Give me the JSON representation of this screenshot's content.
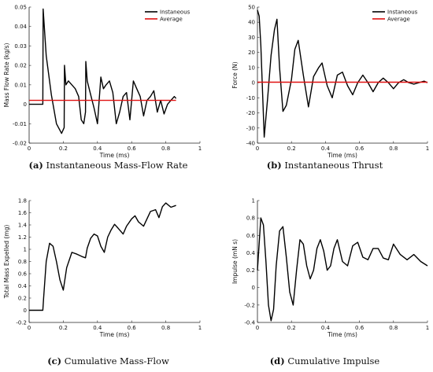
{
  "chart_data": [
    {
      "id": "a",
      "type": "line",
      "caption_letter": "(a)",
      "caption_text": "Instantaneous Mass-Flow Rate",
      "xlabel": "Time (ms)",
      "ylabel": "Mass Flow Rate (kg/s)",
      "xlim": [
        0,
        1
      ],
      "ylim": [
        -0.02,
        0.05
      ],
      "xticks": [
        "0",
        "0.2",
        "0.4",
        "0.6",
        "0.8",
        "1"
      ],
      "xtick_values": [
        0,
        0.2,
        0.4,
        0.6,
        0.8,
        1
      ],
      "yticks": [
        "-0.02",
        "-0.01",
        "0",
        "0.01",
        "0.02",
        "0.03",
        "0.04",
        "0.05"
      ],
      "ytick_values": [
        -0.02,
        -0.01,
        0,
        0.01,
        0.02,
        0.03,
        0.04,
        0.05
      ],
      "legend_position": "top-right",
      "series": [
        {
          "name": "Instaneous",
          "color": "#000000",
          "x": [
            0,
            0.08,
            0.082,
            0.1,
            0.13,
            0.16,
            0.19,
            0.205,
            0.207,
            0.215,
            0.23,
            0.25,
            0.27,
            0.29,
            0.305,
            0.32,
            0.33,
            0.332,
            0.34,
            0.36,
            0.38,
            0.4,
            0.42,
            0.435,
            0.45,
            0.47,
            0.49,
            0.51,
            0.53,
            0.55,
            0.57,
            0.59,
            0.61,
            0.63,
            0.65,
            0.67,
            0.69,
            0.71,
            0.73,
            0.75,
            0.77,
            0.79,
            0.81,
            0.83,
            0.85,
            0.86
          ],
          "y": [
            0,
            0,
            0.049,
            0.025,
            0.005,
            -0.01,
            -0.015,
            -0.012,
            0.02,
            0.01,
            0.012,
            0.01,
            0.008,
            0.004,
            -0.008,
            -0.01,
            -0.004,
            0.022,
            0.012,
            0.005,
            -0.002,
            -0.01,
            0.014,
            0.008,
            0.01,
            0.012,
            0.006,
            -0.01,
            -0.004,
            0.004,
            0.006,
            -0.008,
            0.012,
            0.008,
            0.004,
            -0.006,
            0.002,
            0.004,
            0.007,
            -0.004,
            0.002,
            -0.005,
            0.0,
            0.002,
            0.004,
            0.003
          ]
        },
        {
          "name": "Average",
          "color": "#e01010",
          "x": [
            0,
            0.86
          ],
          "y": [
            0.002,
            0.002
          ]
        }
      ]
    },
    {
      "id": "b",
      "type": "line",
      "caption_letter": "(b)",
      "caption_text": "Instantaneous Thrust",
      "xlabel": "Time (ms)",
      "ylabel": "Force (N)",
      "xlim": [
        0,
        1
      ],
      "ylim": [
        -40,
        50
      ],
      "xticks": [
        "0",
        "0.2",
        "0.4",
        "0.6",
        "0.8",
        "1"
      ],
      "xtick_values": [
        0,
        0.2,
        0.4,
        0.6,
        0.8,
        1
      ],
      "yticks": [
        "-40",
        "-30",
        "-20",
        "-10",
        "0",
        "10",
        "20",
        "30",
        "40",
        "50"
      ],
      "ytick_values": [
        -40,
        -30,
        -20,
        -10,
        0,
        10,
        20,
        30,
        40,
        50
      ],
      "legend_position": "top-right",
      "series": [
        {
          "name": "Instaneous",
          "color": "#000000",
          "x": [
            0,
            0.01,
            0.02,
            0.04,
            0.06,
            0.08,
            0.1,
            0.115,
            0.13,
            0.15,
            0.17,
            0.2,
            0.22,
            0.24,
            0.27,
            0.3,
            0.33,
            0.36,
            0.38,
            0.41,
            0.44,
            0.47,
            0.5,
            0.53,
            0.56,
            0.59,
            0.62,
            0.65,
            0.68,
            0.71,
            0.74,
            0.77,
            0.8,
            0.83,
            0.86,
            0.89,
            0.92,
            0.95,
            0.98,
            1.0
          ],
          "y": [
            48,
            44,
            25,
            -36,
            -10,
            18,
            35,
            42,
            10,
            -19,
            -15,
            2,
            22,
            28,
            5,
            -16,
            4,
            10,
            13,
            -2,
            -10,
            5,
            7,
            -2,
            -8,
            0,
            5,
            0,
            -6,
            0,
            3,
            0,
            -4,
            0,
            2,
            0,
            -1,
            0,
            1,
            0
          ]
        },
        {
          "name": "Average",
          "color": "#e01010",
          "x": [
            0,
            1
          ],
          "y": [
            0.3,
            0.3
          ]
        }
      ]
    },
    {
      "id": "c",
      "type": "line",
      "caption_letter": "(c)",
      "caption_text": "Cumulative Mass-Flow",
      "xlabel": "Time (ms)",
      "ylabel": "Total Mass Expelled (mg)",
      "xlim": [
        0,
        1
      ],
      "ylim": [
        -0.2,
        1.8
      ],
      "xticks": [
        "0",
        "0.2",
        "0.4",
        "0.6",
        "0.8",
        "1"
      ],
      "xtick_values": [
        0,
        0.2,
        0.4,
        0.6,
        0.8,
        1
      ],
      "yticks": [
        "-0.2",
        "0",
        "0.2",
        "0.4",
        "0.6",
        "0.8",
        "1",
        "1.2",
        "1.4",
        "1.6",
        "1.8"
      ],
      "ytick_values": [
        -0.2,
        0,
        0.2,
        0.4,
        0.6,
        0.8,
        1,
        1.2,
        1.4,
        1.6,
        1.8
      ],
      "series": [
        {
          "name": "",
          "color": "#000000",
          "x": [
            0,
            0.08,
            0.085,
            0.1,
            0.12,
            0.14,
            0.16,
            0.18,
            0.2,
            0.22,
            0.25,
            0.28,
            0.31,
            0.33,
            0.34,
            0.36,
            0.38,
            0.4,
            0.42,
            0.44,
            0.46,
            0.48,
            0.5,
            0.52,
            0.55,
            0.57,
            0.6,
            0.62,
            0.64,
            0.67,
            0.69,
            0.71,
            0.74,
            0.76,
            0.78,
            0.8,
            0.83,
            0.86
          ],
          "y": [
            0,
            0,
            0.2,
            0.8,
            1.1,
            1.05,
            0.8,
            0.5,
            0.33,
            0.7,
            0.95,
            0.92,
            0.88,
            0.86,
            1.02,
            1.18,
            1.25,
            1.22,
            1.05,
            0.95,
            1.2,
            1.32,
            1.41,
            1.35,
            1.25,
            1.38,
            1.5,
            1.55,
            1.45,
            1.38,
            1.5,
            1.62,
            1.65,
            1.52,
            1.7,
            1.76,
            1.69,
            1.72
          ]
        }
      ]
    },
    {
      "id": "d",
      "type": "line",
      "caption_letter": "(d)",
      "caption_text": "Cumulative Impulse",
      "xlabel": "Time (ms)",
      "ylabel": "Impulse (mN s)",
      "xlim": [
        0,
        1
      ],
      "ylim": [
        -0.4,
        1
      ],
      "xticks": [
        "0",
        "0.2",
        "0.4",
        "0.6",
        "0.8",
        "1"
      ],
      "xtick_values": [
        0,
        0.2,
        0.4,
        0.6,
        0.8,
        1
      ],
      "yticks": [
        "-0.4",
        "-0.2",
        "0",
        "0.2",
        "0.4",
        "0.6",
        "0.8",
        "1"
      ],
      "ytick_values": [
        -0.4,
        -0.2,
        0,
        0.2,
        0.4,
        0.6,
        0.8,
        1
      ],
      "series": [
        {
          "name": "",
          "color": "#000000",
          "x": [
            0,
            0.02,
            0.035,
            0.05,
            0.065,
            0.08,
            0.095,
            0.11,
            0.13,
            0.15,
            0.17,
            0.19,
            0.21,
            0.23,
            0.25,
            0.27,
            0.29,
            0.31,
            0.33,
            0.35,
            0.37,
            0.39,
            0.41,
            0.43,
            0.45,
            0.47,
            0.5,
            0.53,
            0.56,
            0.59,
            0.62,
            0.65,
            0.68,
            0.71,
            0.74,
            0.77,
            0.8,
            0.84,
            0.88,
            0.92,
            0.96,
            1.0
          ],
          "y": [
            0.2,
            0.8,
            0.72,
            0.3,
            -0.2,
            -0.38,
            -0.25,
            0.25,
            0.65,
            0.7,
            0.35,
            -0.05,
            -0.2,
            0.2,
            0.55,
            0.5,
            0.25,
            0.1,
            0.2,
            0.45,
            0.55,
            0.42,
            0.2,
            0.25,
            0.45,
            0.55,
            0.3,
            0.25,
            0.48,
            0.52,
            0.35,
            0.32,
            0.45,
            0.45,
            0.34,
            0.32,
            0.5,
            0.38,
            0.32,
            0.38,
            0.3,
            0.25
          ]
        }
      ]
    }
  ]
}
